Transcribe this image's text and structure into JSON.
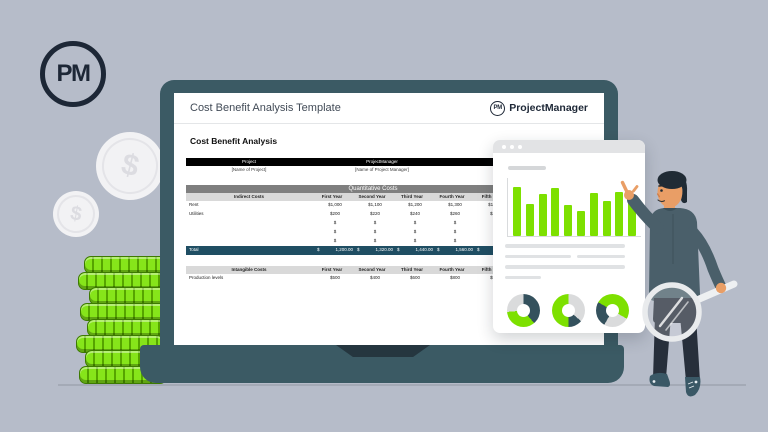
{
  "background_logo": {
    "text": "PM"
  },
  "decor": {
    "coin_symbol": "$",
    "coin_stack_count": 8
  },
  "laptop": {
    "header": {
      "title": "Cost Benefit Analysis Template",
      "logo_badge": "PM",
      "brand": "ProjectManager"
    }
  },
  "sheet": {
    "title": "Cost Benefit Analysis",
    "meta_header": [
      "Project",
      "ProjectManager"
    ],
    "meta_values": [
      "[Name of Project]",
      "[Name of Project Manager]"
    ],
    "quant_title": "Quantitative Costs",
    "years": [
      "First Year",
      "Second Year",
      "Third Year",
      "Fourth Year",
      "Fifth Year"
    ],
    "indirect_label": "Indirect Costs",
    "indirect_rows": [
      {
        "label": "Rent",
        "values": [
          "$1,000",
          "$1,100",
          "$1,200",
          "$1,300",
          "$1,400"
        ]
      },
      {
        "label": "Utilities",
        "values": [
          "$200",
          "$220",
          "$240",
          "$260",
          "$280"
        ]
      },
      {
        "label": "",
        "values": [
          "$",
          "$",
          "$",
          "$",
          "$"
        ]
      },
      {
        "label": "",
        "values": [
          "$",
          "$",
          "$",
          "$",
          "$"
        ]
      },
      {
        "label": "",
        "values": [
          "$",
          "$",
          "$",
          "$",
          "$"
        ]
      }
    ],
    "currency": "$",
    "total_label": "Total",
    "total_values": [
      "1,200.00",
      "1,320.00",
      "1,440.00",
      "1,560.00",
      "1,680.00"
    ],
    "intangible_label": "Intangible Costs",
    "intangible_rows": [
      {
        "label": "Production levels",
        "values": [
          "$500",
          "$400",
          "$600",
          "$800",
          "$500"
        ]
      }
    ]
  },
  "chart_data": [
    {
      "type": "bar",
      "title": "",
      "x": [
        1,
        2,
        3,
        4,
        5,
        6,
        7,
        8,
        9,
        10
      ],
      "values": [
        95,
        62,
        80,
        92,
        60,
        48,
        82,
        68,
        84,
        76
      ],
      "ylim": [
        0,
        100
      ],
      "color": "#7de000",
      "grid": false,
      "legend": "none"
    },
    {
      "type": "pie",
      "segments": [
        {
          "color": "#34515d",
          "deg": 140
        },
        {
          "color": "#7de000",
          "deg": 125
        },
        {
          "color": "#dadbdc",
          "deg": 95
        }
      ]
    },
    {
      "type": "pie",
      "segments": [
        {
          "color": "#dadbdc",
          "deg": 130
        },
        {
          "color": "#34515d",
          "deg": 50
        },
        {
          "color": "#7de000",
          "deg": 180
        }
      ]
    },
    {
      "type": "pie",
      "segments": [
        {
          "color": "#7de000",
          "deg": 120
        },
        {
          "color": "#dadbdc",
          "deg": 90
        },
        {
          "color": "#34515d",
          "deg": 90
        },
        {
          "color": "#7de000",
          "deg": 60
        }
      ]
    }
  ],
  "colors": {
    "background": "#b6bcc9",
    "laptop": "#3b5a64",
    "accent_green": "#7de000",
    "total_row": "#1f4e63",
    "section_gray": "#7f7f7f",
    "header_light": "#d9d9d9",
    "brand_dark": "#1d2736"
  }
}
